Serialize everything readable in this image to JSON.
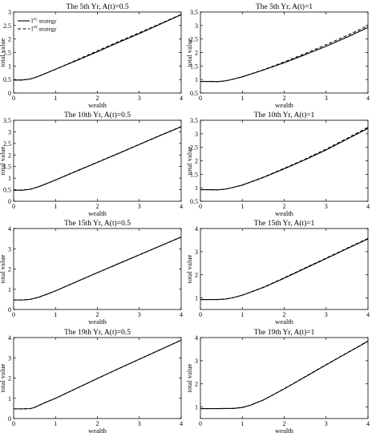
{
  "chart_data": [
    {
      "type": "line",
      "title": "The 5th Yr, A(t)=0.5",
      "xlabel": "wealth",
      "ylabel": "total value",
      "xlim": [
        0,
        4
      ],
      "ylim": [
        0,
        3
      ],
      "xticks": [
        "0",
        "1",
        "2",
        "3",
        "4"
      ],
      "yticks": [
        "0",
        "0.5",
        "1",
        "1.5",
        "2",
        "2.5",
        "3"
      ],
      "legend": {
        "position": "top-left",
        "entries": [
          {
            "base": "Γ",
            "sup": "G",
            "rest": " strategy"
          },
          {
            "base": "Γ",
            "sup": "N",
            "rest": " strategy"
          }
        ]
      },
      "x": [
        0,
        0.2,
        0.4,
        0.6,
        0.8,
        1.0,
        1.5,
        2.0,
        2.5,
        3.0,
        3.5,
        4.0
      ],
      "series": [
        {
          "style": "solid",
          "values": [
            0.48,
            0.48,
            0.52,
            0.62,
            0.75,
            0.88,
            1.2,
            1.53,
            1.87,
            2.2,
            2.55,
            2.9
          ]
        },
        {
          "style": "dashed",
          "values": [
            0.48,
            0.48,
            0.52,
            0.62,
            0.75,
            0.88,
            1.22,
            1.56,
            1.9,
            2.23,
            2.57,
            2.91
          ]
        }
      ]
    },
    {
      "type": "line",
      "title": "The 5th Yr, A(t)=1",
      "xlabel": "wealth",
      "ylabel": "total value",
      "xlim": [
        0,
        4
      ],
      "ylim": [
        0.5,
        3.5
      ],
      "xticks": [
        "0",
        "1",
        "2",
        "3",
        "4"
      ],
      "yticks": [
        "0.5",
        "1",
        "1.5",
        "2",
        "2.5",
        "3",
        "3.5"
      ],
      "x": [
        0,
        0.2,
        0.4,
        0.6,
        0.8,
        1.0,
        1.5,
        2.0,
        2.5,
        3.0,
        3.5,
        4.0
      ],
      "series": [
        {
          "style": "solid",
          "values": [
            0.93,
            0.93,
            0.92,
            0.95,
            1.02,
            1.1,
            1.35,
            1.62,
            1.92,
            2.23,
            2.57,
            2.93
          ]
        },
        {
          "style": "dashed",
          "values": [
            0.93,
            0.93,
            0.92,
            0.95,
            1.02,
            1.1,
            1.36,
            1.65,
            1.96,
            2.29,
            2.63,
            2.99
          ]
        }
      ]
    },
    {
      "type": "line",
      "title": "The 10th Yr, A(t)=0.5",
      "xlabel": "wealth",
      "ylabel": "total value",
      "xlim": [
        0,
        4
      ],
      "ylim": [
        0,
        3.5
      ],
      "xticks": [
        "0",
        "1",
        "2",
        "3",
        "4"
      ],
      "yticks": [
        "0",
        "0.5",
        "1",
        "1.5",
        "2",
        "2.5",
        "3",
        "3.5"
      ],
      "x": [
        0,
        0.2,
        0.4,
        0.6,
        0.8,
        1.0,
        1.5,
        2.0,
        2.5,
        3.0,
        3.5,
        4.0
      ],
      "series": [
        {
          "style": "solid",
          "values": [
            0.48,
            0.48,
            0.52,
            0.63,
            0.77,
            0.92,
            1.3,
            1.68,
            2.06,
            2.45,
            2.84,
            3.22
          ]
        },
        {
          "style": "dashed",
          "values": [
            0.48,
            0.48,
            0.52,
            0.63,
            0.77,
            0.92,
            1.31,
            1.69,
            2.07,
            2.46,
            2.85,
            3.23
          ]
        }
      ]
    },
    {
      "type": "line",
      "title": "The 10th Yr, A(t)=1",
      "xlabel": "wealth",
      "ylabel": "total value",
      "xlim": [
        0,
        4
      ],
      "ylim": [
        0.5,
        3.5
      ],
      "xticks": [
        "0",
        "1",
        "2",
        "3",
        "4"
      ],
      "yticks": [
        "0.5",
        "1",
        "1.5",
        "2",
        "2.5",
        "3",
        "3.5"
      ],
      "x": [
        0,
        0.2,
        0.4,
        0.6,
        0.8,
        1.0,
        1.5,
        2.0,
        2.5,
        3.0,
        3.5,
        4.0
      ],
      "series": [
        {
          "style": "solid",
          "values": [
            0.93,
            0.93,
            0.92,
            0.95,
            1.02,
            1.1,
            1.38,
            1.7,
            2.04,
            2.4,
            2.8,
            3.2
          ]
        },
        {
          "style": "dashed",
          "values": [
            0.93,
            0.93,
            0.92,
            0.95,
            1.02,
            1.1,
            1.39,
            1.72,
            2.06,
            2.43,
            2.83,
            3.24
          ]
        }
      ]
    },
    {
      "type": "line",
      "title": "The 15th Yr, A(t)=0.5",
      "xlabel": "wealth",
      "ylabel": "total value",
      "xlim": [
        0,
        4
      ],
      "ylim": [
        0,
        4
      ],
      "xticks": [
        "0",
        "1",
        "2",
        "3",
        "4"
      ],
      "yticks": [
        "0",
        "1",
        "2",
        "3",
        "4"
      ],
      "x": [
        0,
        0.2,
        0.4,
        0.6,
        0.8,
        1.0,
        1.5,
        2.0,
        2.5,
        3.0,
        3.5,
        4.0
      ],
      "series": [
        {
          "style": "solid",
          "values": [
            0.47,
            0.47,
            0.5,
            0.61,
            0.76,
            0.92,
            1.37,
            1.82,
            2.26,
            2.7,
            3.14,
            3.58
          ]
        },
        {
          "style": "dashed",
          "values": [
            0.47,
            0.47,
            0.5,
            0.61,
            0.76,
            0.92,
            1.37,
            1.82,
            2.26,
            2.7,
            3.14,
            3.58
          ]
        }
      ]
    },
    {
      "type": "line",
      "title": "The 15th Yr, A(t)=1",
      "xlabel": "wealth",
      "ylabel": "total value",
      "xlim": [
        0,
        4
      ],
      "ylim": [
        0.5,
        4
      ],
      "xticks": [
        "0",
        "1",
        "2",
        "3",
        "4"
      ],
      "yticks": [
        "1",
        "2",
        "3",
        "4"
      ],
      "x": [
        0,
        0.2,
        0.4,
        0.6,
        0.8,
        1.0,
        1.5,
        2.0,
        2.5,
        3.0,
        3.5,
        4.0
      ],
      "series": [
        {
          "style": "solid",
          "values": [
            0.93,
            0.93,
            0.93,
            0.95,
            1.02,
            1.12,
            1.45,
            1.85,
            2.28,
            2.7,
            3.13,
            3.55
          ]
        },
        {
          "style": "dashed",
          "values": [
            0.93,
            0.93,
            0.93,
            0.95,
            1.02,
            1.12,
            1.46,
            1.87,
            2.3,
            2.72,
            3.15,
            3.57
          ]
        }
      ]
    },
    {
      "type": "line",
      "title": "The 19th Yr, A(t)=0.5",
      "xlabel": "wealth",
      "ylabel": "total value",
      "xlim": [
        0,
        4
      ],
      "ylim": [
        0,
        4
      ],
      "xticks": [
        "0",
        "1",
        "2",
        "3",
        "4"
      ],
      "yticks": [
        "0",
        "1",
        "2",
        "3",
        "4"
      ],
      "x": [
        0,
        0.2,
        0.4,
        0.5,
        0.6,
        0.8,
        1.0,
        1.5,
        2.0,
        2.5,
        3.0,
        3.5,
        4.0
      ],
      "series": [
        {
          "style": "solid",
          "values": [
            0.48,
            0.48,
            0.49,
            0.55,
            0.65,
            0.83,
            1.0,
            1.49,
            1.98,
            2.46,
            2.93,
            3.4,
            3.87
          ]
        },
        {
          "style": "dashed",
          "values": [
            0.48,
            0.48,
            0.49,
            0.55,
            0.65,
            0.83,
            1.0,
            1.49,
            1.98,
            2.46,
            2.93,
            3.4,
            3.87
          ]
        }
      ]
    },
    {
      "type": "line",
      "title": "The 19th Yr, A(t)=1",
      "xlabel": "wealth",
      "ylabel": "total value",
      "xlim": [
        0,
        4
      ],
      "ylim": [
        0.5,
        4
      ],
      "xticks": [
        "0",
        "1",
        "2",
        "3",
        "4"
      ],
      "yticks": [
        "1",
        "2",
        "3",
        "4"
      ],
      "x": [
        0,
        0.4,
        0.8,
        1.0,
        1.2,
        1.5,
        2.0,
        2.5,
        3.0,
        3.5,
        4.0
      ],
      "series": [
        {
          "style": "solid",
          "values": [
            0.93,
            0.93,
            0.94,
            0.98,
            1.08,
            1.3,
            1.78,
            2.3,
            2.82,
            3.33,
            3.84
          ]
        },
        {
          "style": "dashed",
          "values": [
            0.93,
            0.93,
            0.94,
            0.98,
            1.08,
            1.3,
            1.79,
            2.31,
            2.83,
            3.34,
            3.85
          ]
        }
      ]
    }
  ]
}
